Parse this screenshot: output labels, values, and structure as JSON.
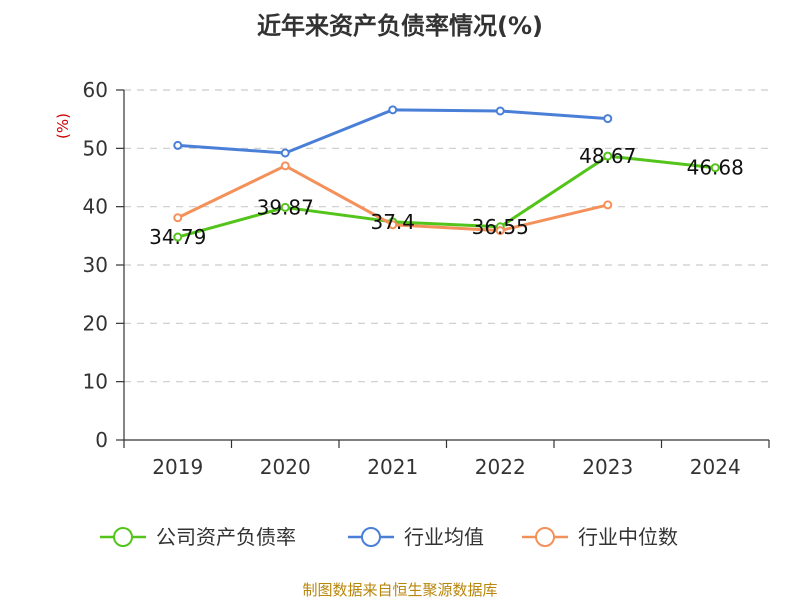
{
  "chart_data": {
    "type": "line",
    "title": "近年来资产负债率情况(%)",
    "ylabel": "(%)",
    "xlabel": "",
    "categories": [
      "2019",
      "2020",
      "2021",
      "2022",
      "2023",
      "2024"
    ],
    "ylim": [
      0,
      60
    ],
    "yticks": [
      0,
      10,
      20,
      30,
      40,
      50,
      60
    ],
    "grid": true,
    "legend_position": "bottom",
    "series": [
      {
        "name": "公司资产负债率",
        "color": "#52c41a",
        "values": [
          34.79,
          39.87,
          37.4,
          36.55,
          48.67,
          46.68
        ],
        "labels": [
          "34.79",
          "39.87",
          "37.4",
          "36.55",
          "48.67",
          "46.68"
        ]
      },
      {
        "name": "行业均值",
        "color": "#4a7fd8",
        "values": [
          50.5,
          49.2,
          56.6,
          56.4,
          55.1,
          null
        ]
      },
      {
        "name": "行业中位数",
        "color": "#f4905a",
        "values": [
          38.1,
          47.0,
          36.9,
          35.9,
          40.3,
          null
        ]
      }
    ]
  },
  "footer": {
    "source": "制图数据来自恒生聚源数据库"
  }
}
